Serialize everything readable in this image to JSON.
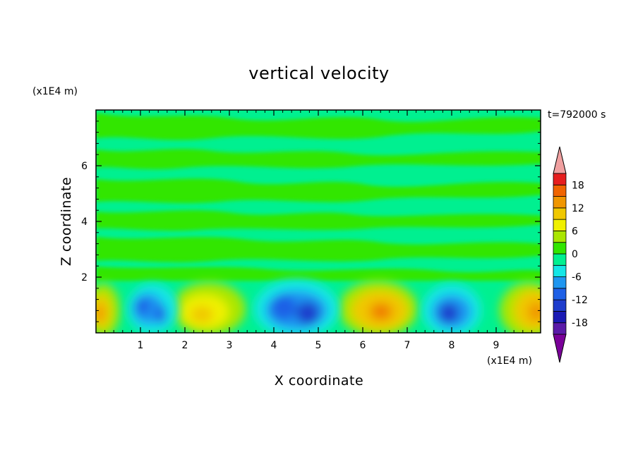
{
  "chart_data": {
    "type": "heatmap",
    "title": "vertical velocity",
    "xlabel": "X coordinate",
    "ylabel": "Z coordinate",
    "x_unit": "(x1E4 m)",
    "y_unit": "(x1E4 m)",
    "time_label": "t=792000 s",
    "xlim": [
      0,
      10
    ],
    "ylim": [
      0,
      8
    ],
    "x_ticks": [
      1,
      2,
      3,
      4,
      5,
      6,
      7,
      8,
      9
    ],
    "y_ticks": [
      2,
      4,
      6
    ],
    "colorbar": {
      "levels": [
        -21,
        -18,
        -15,
        -12,
        -9,
        -6,
        -3,
        0,
        3,
        6,
        9,
        12,
        15,
        18,
        21
      ],
      "labels": [
        18,
        12,
        6,
        0,
        -6,
        -12,
        -18
      ],
      "colors": [
        "#7a0099",
        "#5a1aa8",
        "#1a1ab4",
        "#1e3ccc",
        "#1e60e6",
        "#1e96f0",
        "#14e6e6",
        "#00f090",
        "#32e600",
        "#aae600",
        "#f0f000",
        "#f0c800",
        "#f09600",
        "#f06400",
        "#e61e1e",
        "#f0a0a0"
      ],
      "under_color": "#7a0099",
      "over_color": "#f0a0a0"
    },
    "cells": [
      {
        "x": 0.1,
        "z": 0.8,
        "w": 0.12
      },
      {
        "x": 1.2,
        "z": 0.9,
        "w": -0.11
      },
      {
        "x": 1.5,
        "z": 0.7,
        "w": -0.1
      },
      {
        "x": 2.4,
        "z": 0.7,
        "w": 0.12
      },
      {
        "x": 4.3,
        "z": 0.9,
        "w": -0.14
      },
      {
        "x": 4.7,
        "z": 0.8,
        "w": -0.13
      },
      {
        "x": 6.4,
        "z": 0.8,
        "w": 0.15
      },
      {
        "x": 8.0,
        "z": 0.8,
        "w": -0.13
      },
      {
        "x": 9.8,
        "z": 0.8,
        "w": 0.14
      }
    ]
  }
}
